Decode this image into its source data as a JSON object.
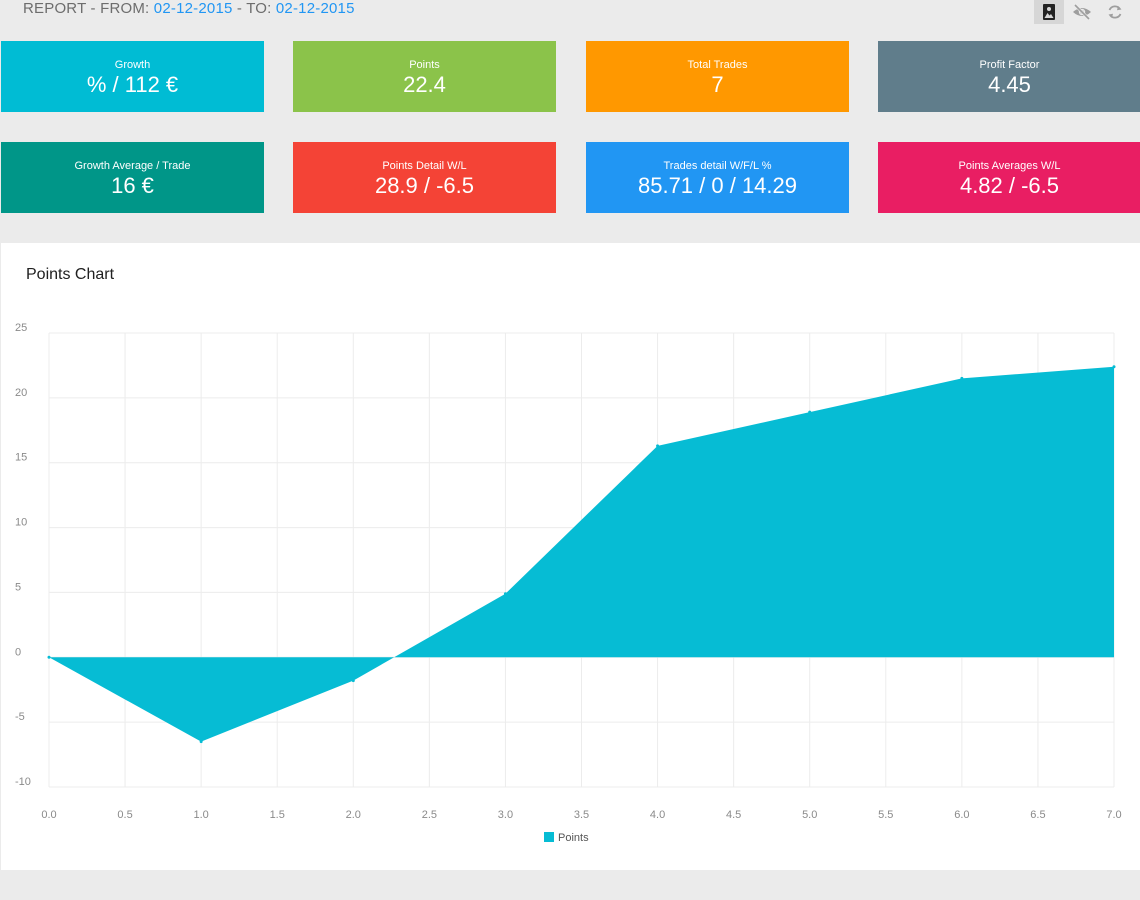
{
  "header": {
    "prefix": "REPORT - FROM: ",
    "from_date": "02-12-2015",
    "to_label": " - TO: ",
    "to_date": "02-12-2015"
  },
  "toolbar": {
    "buttons": [
      {
        "icon": "image-icon",
        "active": true
      },
      {
        "icon": "eye-off-icon",
        "active": false
      },
      {
        "icon": "refresh-icon",
        "active": false
      }
    ]
  },
  "tiles": [
    {
      "label": "Growth",
      "value": "% / 112 €",
      "color": "#00bcd4"
    },
    {
      "label": "Points",
      "value": "22.4",
      "color": "#8bc34a"
    },
    {
      "label": "Total Trades",
      "value": "7",
      "color": "#ff9800"
    },
    {
      "label": "Profit Factor",
      "value": "4.45",
      "color": "#607d8b"
    },
    {
      "label": "Growth Average / Trade",
      "value": "16 €",
      "color": "#009688"
    },
    {
      "label": "Points Detail W/L",
      "value": "28.9 / -6.5",
      "color": "#f44336"
    },
    {
      "label": "Trades detail W/F/L %",
      "value": "85.71 / 0 / 14.29",
      "color": "#2196f3"
    },
    {
      "label": "Points Averages W/L",
      "value": "4.82 / -6.5",
      "color": "#e91e63"
    }
  ],
  "chart_panel": {
    "title": "Points Chart"
  },
  "chart_data": {
    "type": "area",
    "title": "Points Chart",
    "x": [
      0,
      1,
      2,
      3,
      4,
      5,
      6,
      7
    ],
    "series": [
      {
        "name": "Points",
        "values": [
          0,
          -6.5,
          -1.8,
          4.9,
          16.3,
          18.9,
          21.5,
          22.4
        ],
        "color": "#06bcd4"
      }
    ],
    "xlim": [
      0,
      7
    ],
    "ylim": [
      -10,
      25
    ],
    "xticks": [
      "0.0",
      "0.5",
      "1.0",
      "1.5",
      "2.0",
      "2.5",
      "3.0",
      "3.5",
      "4.0",
      "4.5",
      "5.0",
      "5.5",
      "6.0",
      "6.5",
      "7.0"
    ],
    "yticks": [
      "25",
      "20",
      "15",
      "10",
      "5",
      "0",
      "-5",
      "-10"
    ],
    "grid": true,
    "legend": "bottom-center"
  }
}
